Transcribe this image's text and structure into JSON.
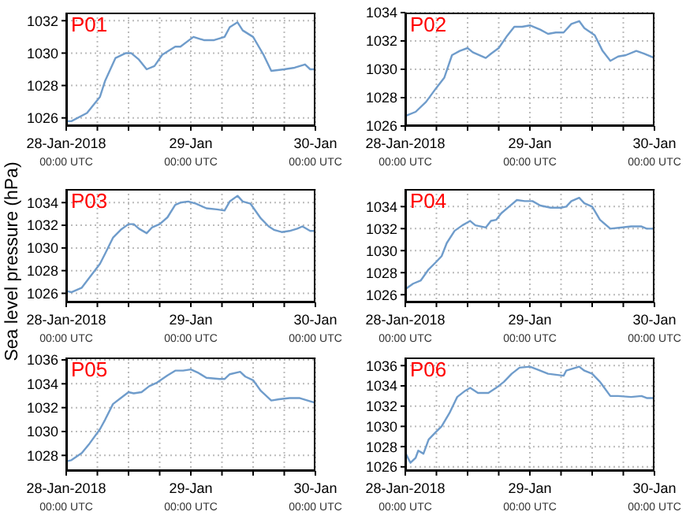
{
  "chart_data": [
    {
      "type": "line",
      "title": "P01",
      "grid": true,
      "xlim": [
        "2018-01-28T00:00",
        "2018-01-30T00:00"
      ],
      "xticks": [
        {
          "value": "2018-01-28T00:00",
          "label": "28-Jan-2018\n00:00 UTC"
        },
        {
          "value": "2018-01-28T06:00",
          "label": null
        },
        {
          "value": "2018-01-28T12:00",
          "label": null
        },
        {
          "value": "2018-01-28T18:00",
          "label": null
        },
        {
          "value": "2018-01-29T00:00",
          "label": "29-Jan\n00:00 UTC"
        },
        {
          "value": "2018-01-29T06:00",
          "label": null
        },
        {
          "value": "2018-01-29T12:00",
          "label": null
        },
        {
          "value": "2018-01-29T18:00",
          "label": null
        },
        {
          "value": "2018-01-30T00:00",
          "label": "30-Jan\n00:00 UTC"
        }
      ],
      "ylim": [
        1025.5,
        1032.5
      ],
      "yticks": [
        1026,
        1028,
        1030,
        1032
      ],
      "series": [
        {
          "color": "#6f9ccb",
          "x": [
            "2018-01-28T00:00",
            "2018-01-28T01:00",
            "2018-01-28T04:00",
            "2018-01-28T06:30",
            "2018-01-28T07:30",
            "2018-01-28T09:30",
            "2018-01-28T11:30",
            "2018-01-28T12:30",
            "2018-01-28T14:00",
            "2018-01-28T15:30",
            "2018-01-28T17:00",
            "2018-01-28T18:30",
            "2018-01-28T21:00",
            "2018-01-28T22:00",
            "2018-01-29T00:30",
            "2018-01-29T02:30",
            "2018-01-29T04:30",
            "2018-01-29T06:30",
            "2018-01-29T07:30",
            "2018-01-29T09:00",
            "2018-01-29T10:00",
            "2018-01-29T12:00",
            "2018-01-29T14:00",
            "2018-01-29T15:30",
            "2018-01-29T18:00",
            "2018-01-29T20:00",
            "2018-01-29T22:00",
            "2018-01-29T23:00",
            "2018-01-30T00:00"
          ],
          "values": [
            1025.8,
            1025.8,
            1026.3,
            1027.3,
            1028.3,
            1029.7,
            1030,
            1030,
            1029.6,
            1029,
            1029.2,
            1029.9,
            1030.4,
            1030.4,
            1031,
            1030.8,
            1030.8,
            1031,
            1031.6,
            1031.9,
            1031.4,
            1031,
            1029.9,
            1028.9,
            1029,
            1029.1,
            1029.3,
            1029,
            1029
          ]
        }
      ]
    },
    {
      "type": "line",
      "title": "P02",
      "grid": true,
      "xlim": [
        "2018-01-28T00:00",
        "2018-01-30T00:00"
      ],
      "xticks": [
        {
          "value": "2018-01-28T00:00",
          "label": "28-Jan-2018\n00:00 UTC"
        },
        {
          "value": "2018-01-28T06:00",
          "label": null
        },
        {
          "value": "2018-01-28T12:00",
          "label": null
        },
        {
          "value": "2018-01-28T18:00",
          "label": null
        },
        {
          "value": "2018-01-29T00:00",
          "label": "29-Jan\n00:00 UTC"
        },
        {
          "value": "2018-01-29T06:00",
          "label": null
        },
        {
          "value": "2018-01-29T12:00",
          "label": null
        },
        {
          "value": "2018-01-29T18:00",
          "label": null
        },
        {
          "value": "2018-01-30T00:00",
          "label": "30-Jan\n00:00 UTC"
        }
      ],
      "ylim": [
        1026,
        1034
      ],
      "yticks": [
        1026,
        1028,
        1030,
        1032,
        1034
      ],
      "series": [
        {
          "color": "#6f9ccb",
          "x": [
            "2018-01-28T00:00",
            "2018-01-28T02:00",
            "2018-01-28T04:00",
            "2018-01-28T06:00",
            "2018-01-28T07:30",
            "2018-01-28T09:00",
            "2018-01-28T10:30",
            "2018-01-28T12:00",
            "2018-01-28T13:00",
            "2018-01-28T15:30",
            "2018-01-28T16:30",
            "2018-01-28T18:00",
            "2018-01-28T19:30",
            "2018-01-28T21:00",
            "2018-01-28T22:30",
            "2018-01-29T00:00",
            "2018-01-29T02:00",
            "2018-01-29T03:30",
            "2018-01-29T05:00",
            "2018-01-29T06:30",
            "2018-01-29T08:00",
            "2018-01-29T09:30",
            "2018-01-29T10:30",
            "2018-01-29T12:30",
            "2018-01-29T14:00",
            "2018-01-29T15:30",
            "2018-01-29T17:00",
            "2018-01-29T18:30",
            "2018-01-29T20:30",
            "2018-01-29T22:00",
            "2018-01-30T00:00"
          ],
          "values": [
            1026.7,
            1027,
            1027.7,
            1028.7,
            1029.4,
            1031,
            1031.3,
            1031.5,
            1031.2,
            1030.8,
            1031.1,
            1031.5,
            1032.3,
            1033,
            1033,
            1033.1,
            1032.8,
            1032.5,
            1032.6,
            1032.6,
            1033.2,
            1033.4,
            1032.9,
            1032.4,
            1031.3,
            1030.6,
            1030.9,
            1031,
            1031.3,
            1031.1,
            1030.8
          ]
        }
      ]
    },
    {
      "type": "line",
      "title": "P03",
      "ylabel": "Sea level pressure (hPa)",
      "grid": true,
      "xlim": [
        "2018-01-28T00:00",
        "2018-01-30T00:00"
      ],
      "xticks": [
        {
          "value": "2018-01-28T00:00",
          "label": "28-Jan-2018\n00:00 UTC"
        },
        {
          "value": "2018-01-28T06:00",
          "label": null
        },
        {
          "value": "2018-01-28T12:00",
          "label": null
        },
        {
          "value": "2018-01-28T18:00",
          "label": null
        },
        {
          "value": "2018-01-29T00:00",
          "label": "29-Jan\n00:00 UTC"
        },
        {
          "value": "2018-01-29T06:00",
          "label": null
        },
        {
          "value": "2018-01-29T12:00",
          "label": null
        },
        {
          "value": "2018-01-29T18:00",
          "label": null
        },
        {
          "value": "2018-01-30T00:00",
          "label": "30-Jan\n00:00 UTC"
        }
      ],
      "ylim": [
        1025.2,
        1035.2
      ],
      "yticks": [
        1026,
        1028,
        1030,
        1032,
        1034
      ],
      "series": [
        {
          "color": "#6f9ccb",
          "x": [
            "2018-01-28T00:00",
            "2018-01-28T01:00",
            "2018-01-28T03:00",
            "2018-01-28T04:30",
            "2018-01-28T06:30",
            "2018-01-28T07:30",
            "2018-01-28T09:00",
            "2018-01-28T10:30",
            "2018-01-28T12:00",
            "2018-01-28T13:00",
            "2018-01-28T14:00",
            "2018-01-28T15:30",
            "2018-01-28T16:30",
            "2018-01-28T18:00",
            "2018-01-28T19:30",
            "2018-01-28T21:00",
            "2018-01-28T22:00",
            "2018-01-28T23:30",
            "2018-01-29T01:00",
            "2018-01-29T03:00",
            "2018-01-29T05:00",
            "2018-01-29T06:30",
            "2018-01-29T07:30",
            "2018-01-29T09:00",
            "2018-01-29T10:00",
            "2018-01-29T11:30",
            "2018-01-29T13:30",
            "2018-01-29T15:00",
            "2018-01-29T16:00",
            "2018-01-29T17:30",
            "2018-01-29T19:00",
            "2018-01-29T20:30",
            "2018-01-29T21:30",
            "2018-01-29T23:00",
            "2018-01-30T00:00"
          ],
          "values": [
            1026.2,
            1026.1,
            1026.5,
            1027.4,
            1028.6,
            1029.5,
            1030.9,
            1031.6,
            1032.1,
            1032.1,
            1031.7,
            1031.3,
            1031.8,
            1032.1,
            1032.7,
            1033.8,
            1034,
            1034.1,
            1033.9,
            1033.5,
            1033.4,
            1033.3,
            1034.1,
            1034.6,
            1034.1,
            1033.9,
            1032.6,
            1031.9,
            1031.6,
            1031.4,
            1031.5,
            1031.7,
            1031.9,
            1031.5,
            1031.5
          ]
        }
      ]
    },
    {
      "type": "line",
      "title": "P04",
      "grid": true,
      "xlim": [
        "2018-01-28T00:00",
        "2018-01-30T00:00"
      ],
      "xticks": [
        {
          "value": "2018-01-28T00:00",
          "label": "28-Jan-2018\n00:00 UTC"
        },
        {
          "value": "2018-01-28T06:00",
          "label": null
        },
        {
          "value": "2018-01-28T12:00",
          "label": null
        },
        {
          "value": "2018-01-28T18:00",
          "label": null
        },
        {
          "value": "2018-01-29T00:00",
          "label": "29-Jan\n00:00 UTC"
        },
        {
          "value": "2018-01-29T06:00",
          "label": null
        },
        {
          "value": "2018-01-29T12:00",
          "label": null
        },
        {
          "value": "2018-01-29T18:00",
          "label": null
        },
        {
          "value": "2018-01-30T00:00",
          "label": "30-Jan\n00:00 UTC"
        }
      ],
      "ylim": [
        1025.3,
        1035.6
      ],
      "yticks": [
        1026,
        1028,
        1030,
        1032,
        1034
      ],
      "series": [
        {
          "color": "#6f9ccb",
          "x": [
            "2018-01-28T00:00",
            "2018-01-28T01:30",
            "2018-01-28T03:00",
            "2018-01-28T04:30",
            "2018-01-28T06:00",
            "2018-01-28T07:00",
            "2018-01-28T08:00",
            "2018-01-28T09:30",
            "2018-01-28T11:00",
            "2018-01-28T12:30",
            "2018-01-28T13:30",
            "2018-01-28T15:30",
            "2018-01-28T16:30",
            "2018-01-28T17:30",
            "2018-01-28T18:30",
            "2018-01-28T20:00",
            "2018-01-28T21:30",
            "2018-01-28T23:00",
            "2018-01-29T00:30",
            "2018-01-29T02:00",
            "2018-01-29T04:00",
            "2018-01-29T06:00",
            "2018-01-29T07:00",
            "2018-01-29T08:00",
            "2018-01-29T09:30",
            "2018-01-29T10:30",
            "2018-01-29T12:00",
            "2018-01-29T13:30",
            "2018-01-29T15:30",
            "2018-01-29T17:30",
            "2018-01-29T19:30",
            "2018-01-29T21:30",
            "2018-01-29T22:30",
            "2018-01-30T00:00"
          ],
          "values": [
            1026.5,
            1027,
            1027.3,
            1028.3,
            1029,
            1029.5,
            1030.7,
            1031.8,
            1032.3,
            1032.7,
            1032.3,
            1032.1,
            1032.7,
            1032.8,
            1033.4,
            1034,
            1034.6,
            1034.5,
            1034.5,
            1034.1,
            1033.9,
            1033.9,
            1034,
            1034.5,
            1034.8,
            1034.3,
            1034,
            1032.8,
            1032,
            1032.1,
            1032.2,
            1032.2,
            1032,
            1032
          ]
        }
      ]
    },
    {
      "type": "line",
      "title": "P05",
      "grid": true,
      "xlim": [
        "2018-01-28T00:00",
        "2018-01-30T00:00"
      ],
      "xticks": [
        {
          "value": "2018-01-28T00:00",
          "label": "28-Jan-2018\n00:00 UTC"
        },
        {
          "value": "2018-01-28T06:00",
          "label": null
        },
        {
          "value": "2018-01-28T12:00",
          "label": null
        },
        {
          "value": "2018-01-28T18:00",
          "label": null
        },
        {
          "value": "2018-01-29T00:00",
          "label": "29-Jan\n00:00 UTC"
        },
        {
          "value": "2018-01-29T06:00",
          "label": null
        },
        {
          "value": "2018-01-29T12:00",
          "label": null
        },
        {
          "value": "2018-01-29T18:00",
          "label": null
        },
        {
          "value": "2018-01-30T00:00",
          "label": "30-Jan\n00:00 UTC"
        }
      ],
      "ylim": [
        1026.7,
        1036.2
      ],
      "yticks": [
        1028,
        1030,
        1032,
        1034,
        1036
      ],
      "series": [
        {
          "color": "#6f9ccb",
          "x": [
            "2018-01-28T00:00",
            "2018-01-28T01:00",
            "2018-01-28T03:00",
            "2018-01-28T04:30",
            "2018-01-28T06:30",
            "2018-01-28T07:30",
            "2018-01-28T09:00",
            "2018-01-28T10:30",
            "2018-01-28T12:00",
            "2018-01-28T13:00",
            "2018-01-28T14:30",
            "2018-01-28T16:00",
            "2018-01-28T17:30",
            "2018-01-28T19:30",
            "2018-01-28T21:00",
            "2018-01-28T22:30",
            "2018-01-29T00:00",
            "2018-01-29T01:30",
            "2018-01-29T03:00",
            "2018-01-29T05:30",
            "2018-01-29T06:30",
            "2018-01-29T07:30",
            "2018-01-29T09:30",
            "2018-01-29T10:30",
            "2018-01-29T12:00",
            "2018-01-29T13:30",
            "2018-01-29T15:30",
            "2018-01-29T17:00",
            "2018-01-29T19:00",
            "2018-01-29T21:00",
            "2018-01-29T22:30",
            "2018-01-30T00:00"
          ],
          "values": [
            1027.5,
            1027.6,
            1028.2,
            1029,
            1030.2,
            1031,
            1032.3,
            1032.8,
            1033.3,
            1033.2,
            1033.3,
            1033.8,
            1034.1,
            1034.7,
            1035.1,
            1035.1,
            1035.2,
            1034.9,
            1034.5,
            1034.4,
            1034.4,
            1034.8,
            1035,
            1034.6,
            1034.3,
            1033.4,
            1032.6,
            1032.7,
            1032.8,
            1032.8,
            1032.6,
            1032.4
          ]
        }
      ]
    },
    {
      "type": "line",
      "title": "P06",
      "grid": true,
      "xlim": [
        "2018-01-28T00:00",
        "2018-01-30T00:00"
      ],
      "xticks": [
        {
          "value": "2018-01-28T00:00",
          "label": "28-Jan-2018\n00:00 UTC"
        },
        {
          "value": "2018-01-28T06:00",
          "label": null
        },
        {
          "value": "2018-01-28T12:00",
          "label": null
        },
        {
          "value": "2018-01-28T18:00",
          "label": null
        },
        {
          "value": "2018-01-29T00:00",
          "label": "29-Jan\n00:00 UTC"
        },
        {
          "value": "2018-01-29T06:00",
          "label": null
        },
        {
          "value": "2018-01-29T12:00",
          "label": null
        },
        {
          "value": "2018-01-29T18:00",
          "label": null
        },
        {
          "value": "2018-01-30T00:00",
          "label": "30-Jan\n00:00 UTC"
        }
      ],
      "ylim": [
        1025.6,
        1036.8
      ],
      "yticks": [
        1026,
        1028,
        1030,
        1032,
        1034,
        1036
      ],
      "series": [
        {
          "color": "#6f9ccb",
          "x": [
            "2018-01-28T00:00",
            "2018-01-28T01:00",
            "2018-01-28T02:00",
            "2018-01-28T02:30",
            "2018-01-28T03:30",
            "2018-01-28T04:30",
            "2018-01-28T06:00",
            "2018-01-28T07:00",
            "2018-01-28T08:30",
            "2018-01-28T10:00",
            "2018-01-28T11:30",
            "2018-01-28T12:30",
            "2018-01-28T14:00",
            "2018-01-28T16:00",
            "2018-01-28T17:30",
            "2018-01-28T19:00",
            "2018-01-28T20:30",
            "2018-01-28T22:00",
            "2018-01-29T00:00",
            "2018-01-29T01:30",
            "2018-01-29T03:30",
            "2018-01-29T06:30",
            "2018-01-29T07:00",
            "2018-01-29T09:30",
            "2018-01-29T10:30",
            "2018-01-29T12:00",
            "2018-01-29T13:30",
            "2018-01-29T15:30",
            "2018-01-29T17:00",
            "2018-01-29T19:30",
            "2018-01-29T21:30",
            "2018-01-29T22:30",
            "2018-01-30T00:00"
          ],
          "values": [
            1027.4,
            1026.4,
            1026.9,
            1027.6,
            1027.3,
            1028.7,
            1029.5,
            1030,
            1031.3,
            1032.9,
            1033.5,
            1033.8,
            1033.3,
            1033.3,
            1033.8,
            1034.4,
            1035.2,
            1035.8,
            1035.9,
            1035.6,
            1035.2,
            1035,
            1035.5,
            1035.9,
            1035.5,
            1035.2,
            1034.4,
            1033,
            1033,
            1032.9,
            1033,
            1032.8,
            1032.8
          ]
        }
      ]
    }
  ]
}
